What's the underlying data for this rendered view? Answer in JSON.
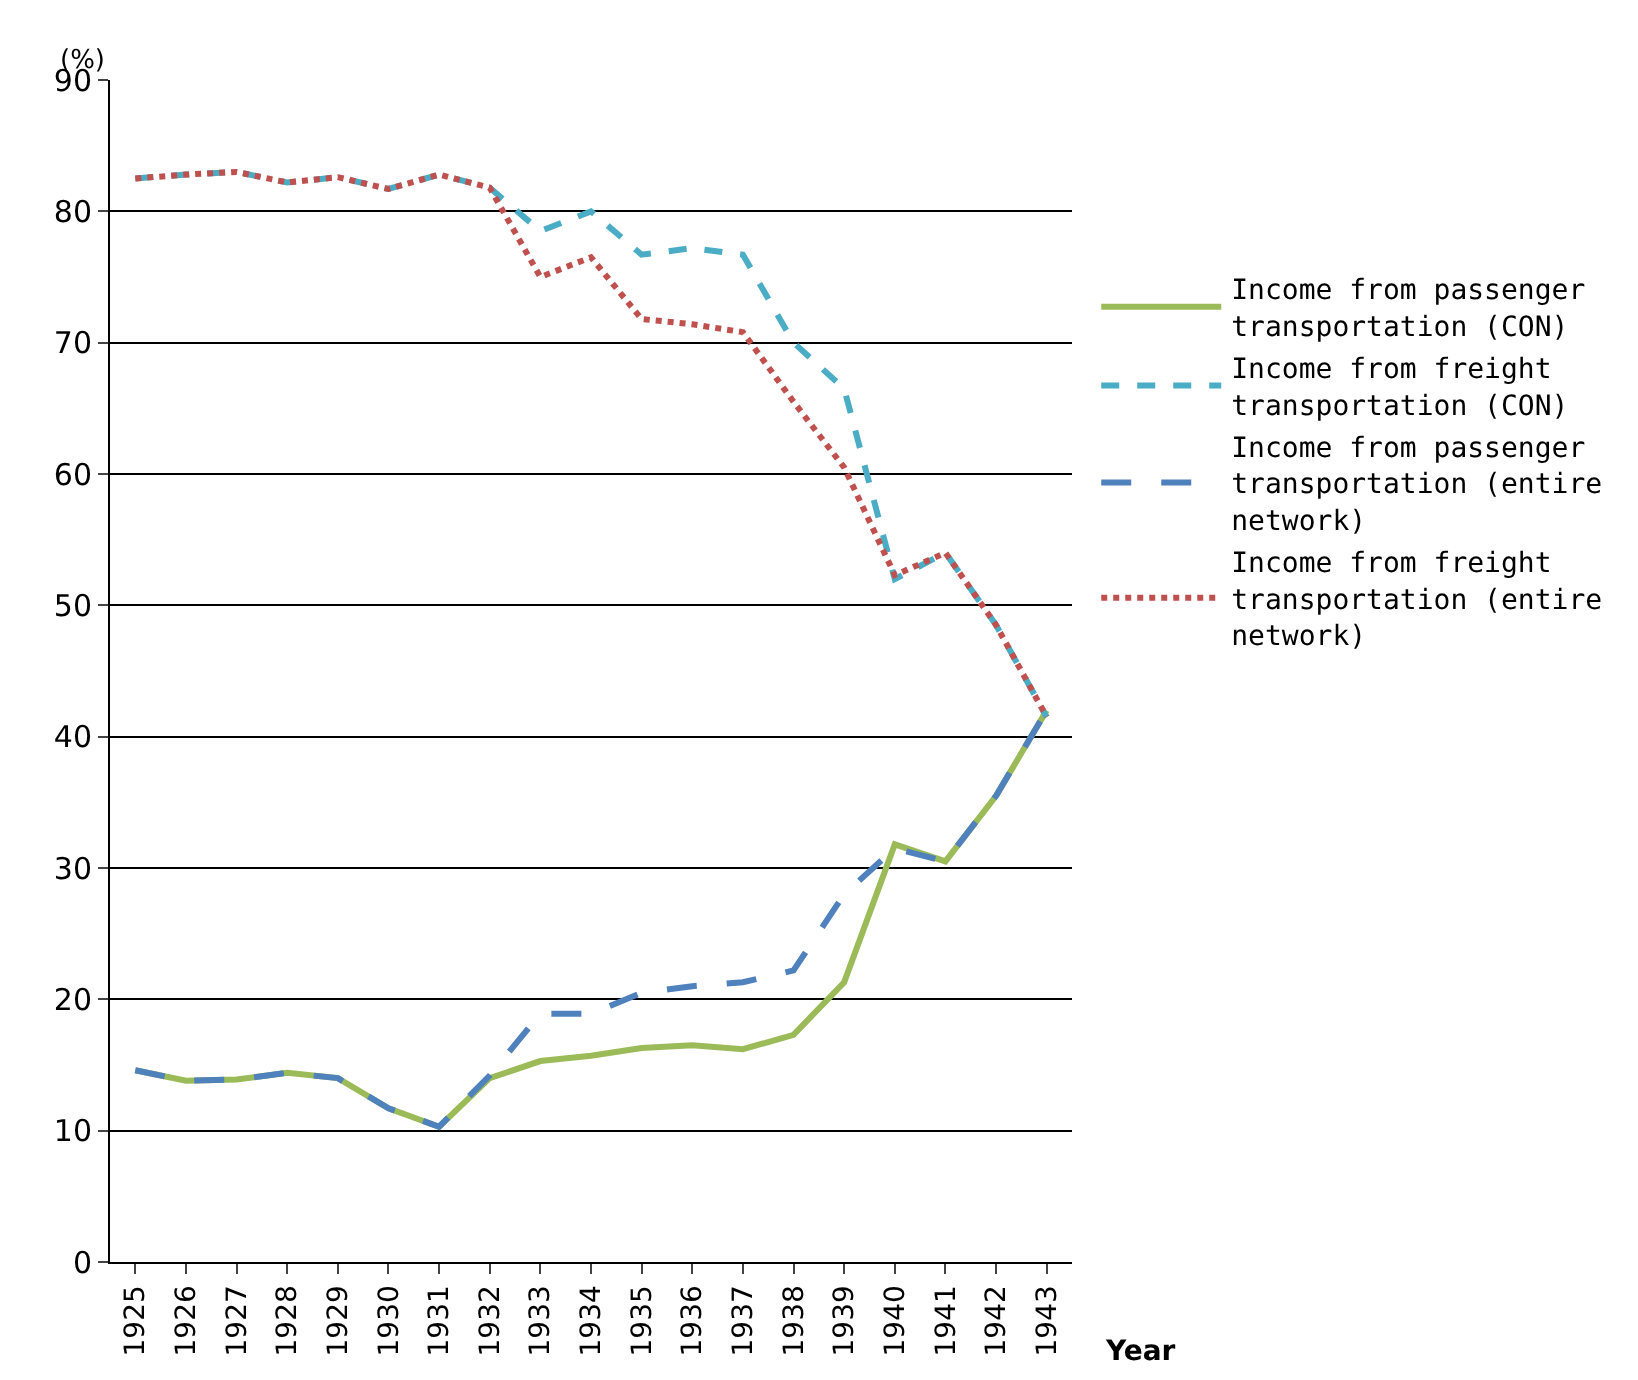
{
  "chart_data": {
    "type": "line",
    "xlabel": "Year",
    "ylabel": "(%)",
    "categories": [
      "1925",
      "1926",
      "1927",
      "1928",
      "1929",
      "1930",
      "1931",
      "1932",
      "1933",
      "1934",
      "1935",
      "1936",
      "1937",
      "1938",
      "1939",
      "1940",
      "1941",
      "1942",
      "1943"
    ],
    "ylim": [
      0,
      90
    ],
    "yticks": [
      0,
      10,
      20,
      30,
      40,
      50,
      60,
      70,
      80,
      90
    ],
    "grid": "y",
    "legend": "right",
    "marker": "none",
    "series": [
      {
        "name": "Income from passenger transportation (CON)",
        "color": "#9bbb59",
        "line_style": "solid",
        "values": [
          14.6,
          13.8,
          13.9,
          14.4,
          14.0,
          11.7,
          10.3,
          14.0,
          15.3,
          15.7,
          16.3,
          16.5,
          16.2,
          17.3,
          21.3,
          31.8,
          30.5,
          35.5,
          42.0
        ]
      },
      {
        "name": "Income from freight transportation (CON)",
        "color": "#4bacc6",
        "line_style": "dashed",
        "values": [
          82.5,
          82.8,
          83.0,
          82.2,
          82.6,
          81.7,
          82.8,
          81.8,
          78.5,
          80.0,
          76.7,
          77.2,
          76.7,
          70.0,
          66.5,
          52.0,
          54.0,
          48.5,
          41.5
        ]
      },
      {
        "name": "Income from passenger transportation (entire network)",
        "color": "#4f81bd",
        "line_style": "longdash",
        "values": [
          14.6,
          13.8,
          13.9,
          14.4,
          14.0,
          11.7,
          10.3,
          14.2,
          18.9,
          18.9,
          20.5,
          21.0,
          21.3,
          22.2,
          28.0,
          31.5,
          30.5,
          35.5,
          42.0
        ]
      },
      {
        "name": "Income from freight transportation (entire network)",
        "color": "#c0504d",
        "line_style": "dotted",
        "values": [
          82.5,
          82.8,
          83.0,
          82.2,
          82.6,
          81.7,
          82.8,
          81.8,
          75.0,
          76.5,
          71.8,
          71.4,
          70.8,
          65.5,
          60.5,
          52.3,
          54.0,
          48.5,
          41.5
        ]
      }
    ]
  }
}
